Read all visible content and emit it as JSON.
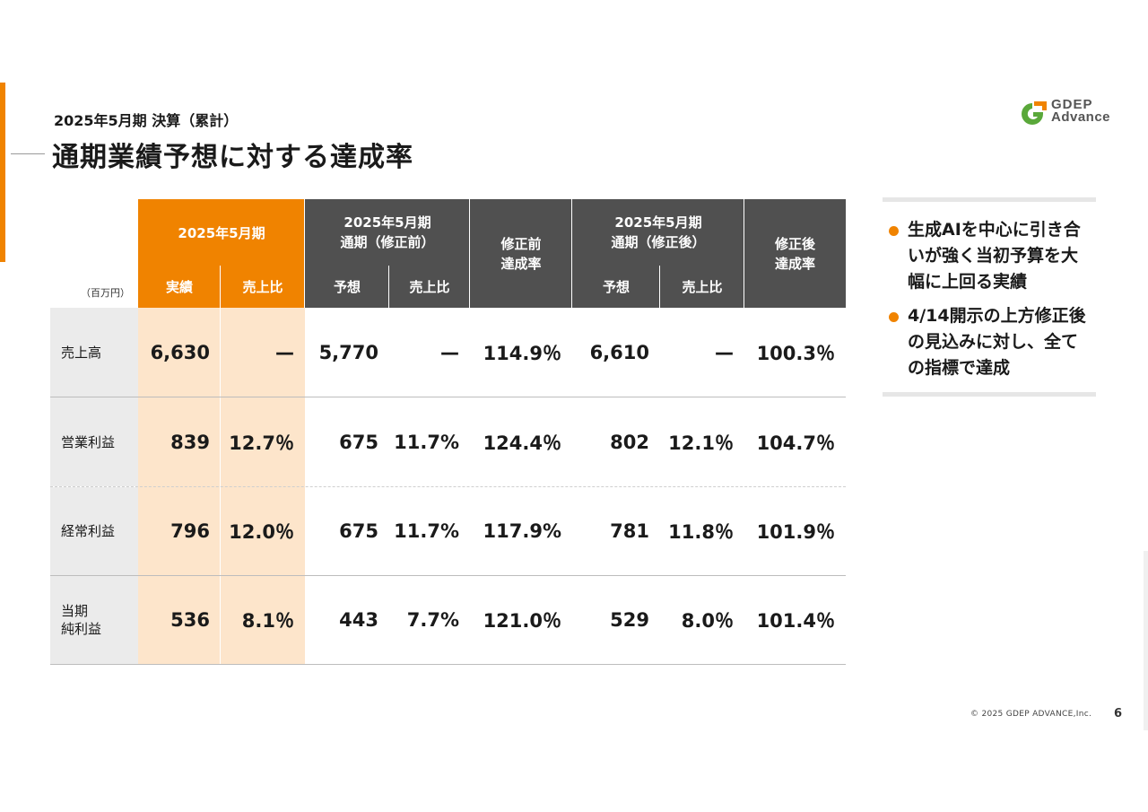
{
  "header": {
    "subtitle": "2025年5月期 決算（累計）",
    "title": "通期業績予想に対する達成率"
  },
  "logo": {
    "line1": "GDEP",
    "line2": "Advance"
  },
  "colors": {
    "accent": "#f08300",
    "header_dark": "#505050",
    "highlight": "#fde5cb"
  },
  "table": {
    "unit": "（百万円）",
    "group_actual": "2025年5月期",
    "group_forecast_before": "2025年5月期\n通期（修正前）",
    "rate_before": "修正前\n達成率",
    "group_forecast_after": "2025年5月期\n通期（修正後）",
    "rate_after": "修正後\n達成率",
    "sub_actual": "実績",
    "sub_ratio": "売上比",
    "sub_forecast": "予想",
    "rows": [
      {
        "label": "売上高",
        "actual": "6,630",
        "actual_ratio": "—",
        "fc_before": "5,770",
        "fc_before_ratio": "—",
        "rate_before": "114.9％",
        "fc_after": "6,610",
        "fc_after_ratio": "—",
        "rate_after": "100.3％"
      },
      {
        "label": "営業利益",
        "actual": "839",
        "actual_ratio": "12.7％",
        "fc_before": "675",
        "fc_before_ratio": "11.7%",
        "rate_before": "124.4％",
        "fc_after": "802",
        "fc_after_ratio": "12.1％",
        "rate_after": "104.7％"
      },
      {
        "label": "経常利益",
        "actual": "796",
        "actual_ratio": "12.0％",
        "fc_before": "675",
        "fc_before_ratio": "11.7%",
        "rate_before": "117.9%",
        "fc_after": "781",
        "fc_after_ratio": "11.8％",
        "rate_after": "101.9％"
      },
      {
        "label": "当期\n純利益",
        "actual": "536",
        "actual_ratio": "8.1％",
        "fc_before": "443",
        "fc_before_ratio": "7.7%",
        "rate_before": "121.0％",
        "fc_after": "529",
        "fc_after_ratio": "8.0％",
        "rate_after": "101.4％"
      }
    ]
  },
  "notes": [
    "生成AIを中心に引き合いが強く当初予算を大幅に上回る実績",
    "4/14開示の上方修正後の見込みに対し、全ての指標で達成"
  ],
  "footer": {
    "copyright": "© 2025 GDEP ADVANCE,Inc.",
    "page": "6"
  }
}
